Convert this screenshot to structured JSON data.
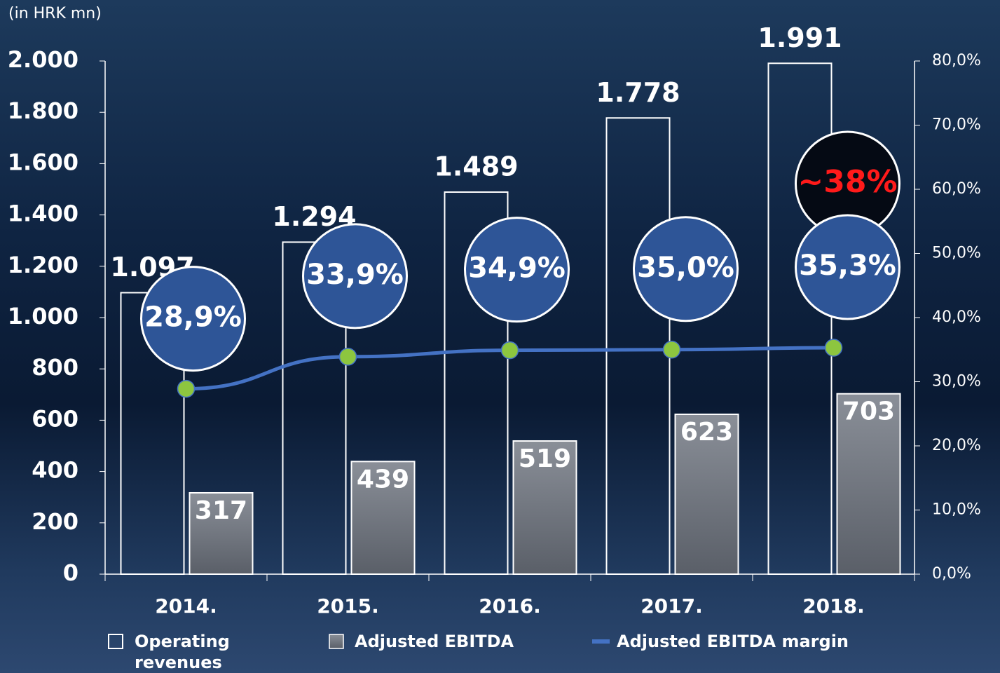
{
  "chart_data": {
    "type": "bar_line",
    "unit_label": "(in HRK mn)",
    "annotation": "~38%",
    "categories": [
      "2014.",
      "2015.",
      "2016.",
      "2017.",
      "2018."
    ],
    "series": [
      {
        "name": "Operating revenues",
        "color": "#ffffff",
        "values": [
          1097,
          1294,
          1489,
          1778,
          1991
        ],
        "value_labels": [
          "1.097",
          "1.294",
          "1.489",
          "1.778",
          "1.991"
        ]
      },
      {
        "name": "Adjusted EBITDA",
        "color": "#7a7f88",
        "values": [
          317,
          439,
          519,
          623,
          703
        ]
      },
      {
        "name": "Adjusted EBITDA margin",
        "color": "#4472c4",
        "axis": "y2",
        "values": [
          28.9,
          33.9,
          34.9,
          35.0,
          35.3
        ],
        "value_labels": [
          "28,9%",
          "33,9%",
          "34,9%",
          "35,0%",
          "35,3%"
        ]
      }
    ],
    "ylim": [
      0,
      2000
    ],
    "yticks": [
      0,
      200,
      400,
      600,
      800,
      {
        "value": 1000,
        "label": "1.000"
      },
      {
        "value": 1200,
        "label": "1.200"
      },
      {
        "value": 1400,
        "label": "1.400"
      },
      {
        "value": 1600,
        "label": "1.600"
      },
      {
        "value": 1800,
        "label": "1.800"
      },
      {
        "value": 2000,
        "label": "2.000"
      }
    ],
    "y2lim": [
      0,
      80
    ],
    "y2ticks": [
      {
        "value": 0,
        "label": "0,0%"
      },
      {
        "value": 10,
        "label": "10,0%"
      },
      {
        "value": 20,
        "label": "20,0%"
      },
      {
        "value": 30,
        "label": "30,0%"
      },
      {
        "value": 40,
        "label": "40,0%"
      },
      {
        "value": 50,
        "label": "50,0%"
      },
      {
        "value": 60,
        "label": "60,0%"
      },
      {
        "value": 70,
        "label": "70,0%"
      },
      {
        "value": 80,
        "label": "80,0%"
      }
    ]
  }
}
